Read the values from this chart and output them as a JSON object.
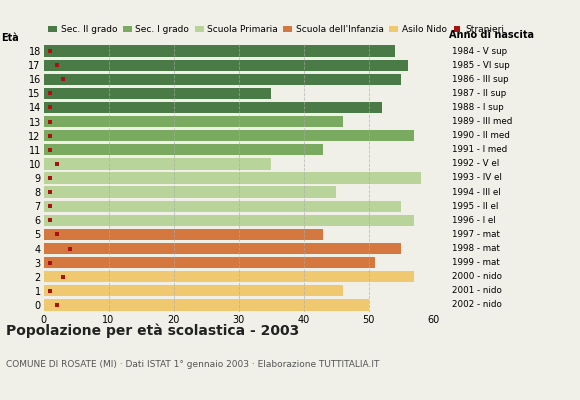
{
  "ages": [
    18,
    17,
    16,
    15,
    14,
    13,
    12,
    11,
    10,
    9,
    8,
    7,
    6,
    5,
    4,
    3,
    2,
    1,
    0
  ],
  "birth_years": [
    "1984 - V sup",
    "1985 - VI sup",
    "1986 - III sup",
    "1987 - II sup",
    "1988 - I sup",
    "1989 - III med",
    "1990 - II med",
    "1991 - I med",
    "1992 - V el",
    "1993 - IV el",
    "1994 - III el",
    "1995 - II el",
    "1996 - I el",
    "1997 - mat",
    "1998 - mat",
    "1999 - mat",
    "2000 - nido",
    "2001 - nido",
    "2002 - nido"
  ],
  "bar_values": [
    54,
    56,
    55,
    35,
    52,
    46,
    57,
    43,
    35,
    58,
    45,
    55,
    57,
    43,
    55,
    51,
    57,
    46,
    50
  ],
  "stranieri": [
    1,
    2,
    3,
    1,
    1,
    1,
    1,
    1,
    2,
    1,
    1,
    1,
    1,
    2,
    4,
    1,
    3,
    1,
    2
  ],
  "bar_colors": [
    "#4a7a45",
    "#4a7a45",
    "#4a7a45",
    "#4a7a45",
    "#4a7a45",
    "#7aaa60",
    "#7aaa60",
    "#7aaa60",
    "#b8d49a",
    "#b8d49a",
    "#b8d49a",
    "#b8d49a",
    "#b8d49a",
    "#d47840",
    "#d47840",
    "#d47840",
    "#f0c870",
    "#f0c870",
    "#f0c870"
  ],
  "legend_labels": [
    "Sec. II grado",
    "Sec. I grado",
    "Scuola Primaria",
    "Scuola dell'Infanzia",
    "Asilo Nido",
    "Stranieri"
  ],
  "legend_colors": [
    "#4a7a45",
    "#7aaa60",
    "#b8d49a",
    "#d47840",
    "#f0c870",
    "#aa1111"
  ],
  "title": "Popolazione per età scolastica - 2003",
  "subtitle": "COMUNE DI ROSATE (MI) · Dati ISTAT 1° gennaio 2003 · Elaborazione TUTTITALIA.IT",
  "eta_label": "Età",
  "anno_label": "Anno di nascita",
  "xlim": [
    0,
    62
  ],
  "xticks": [
    0,
    10,
    20,
    30,
    40,
    50,
    60
  ],
  "bg_color": "#f0f0e8",
  "stranieri_color": "#aa1111",
  "grid_color": "#aaaaaa",
  "bar_height": 0.8
}
